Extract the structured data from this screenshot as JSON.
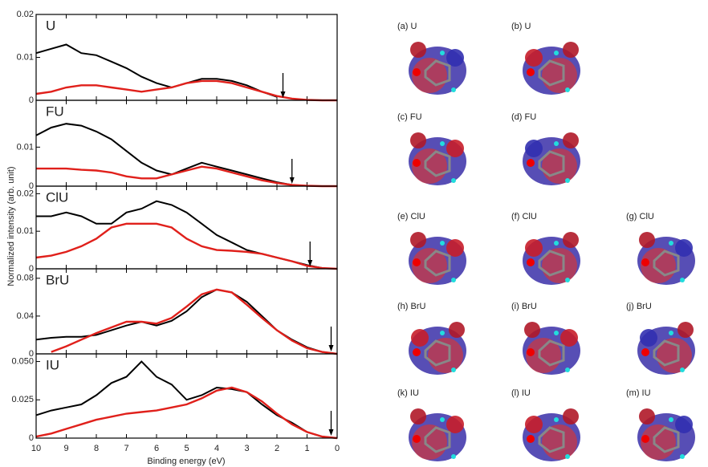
{
  "axes": {
    "xlabel": "Binding energy (eV)",
    "ylabel": "Normalized intensity (arb. unit)"
  },
  "chart_data": [
    {
      "type": "line",
      "label": "U",
      "xlim": [
        10,
        0
      ],
      "ylim": [
        0,
        0.02
      ],
      "yticks": [
        0,
        0.01,
        0.02
      ],
      "xticks": [
        10,
        9,
        8,
        7,
        6,
        5,
        4,
        3,
        2,
        1,
        0
      ],
      "arrow_x": 1.8,
      "x": [
        10,
        9.5,
        9,
        8.5,
        8,
        7.5,
        7,
        6.5,
        6,
        5.5,
        5,
        4.5,
        4,
        3.5,
        3,
        2.5,
        2,
        1.5,
        1,
        0.5,
        0
      ],
      "series": [
        {
          "color": "#000000",
          "values": [
            0.011,
            0.012,
            0.013,
            0.011,
            0.0105,
            0.009,
            0.0075,
            0.0055,
            0.004,
            0.003,
            0.004,
            0.005,
            0.005,
            0.0045,
            0.0035,
            0.002,
            0.0008,
            null,
            null,
            null,
            null
          ]
        },
        {
          "color": "#e0201b",
          "values": [
            0.0015,
            0.002,
            0.003,
            0.0035,
            0.0035,
            0.003,
            0.0025,
            0.002,
            0.0025,
            0.003,
            0.004,
            0.0045,
            0.0045,
            0.004,
            0.003,
            0.002,
            0.001,
            0.0004,
            0.0001,
            0,
            0
          ]
        }
      ]
    },
    {
      "type": "line",
      "label": "FU",
      "xlim": [
        10,
        0
      ],
      "ylim": [
        0,
        0.022
      ],
      "yticks": [
        0,
        0.01
      ],
      "xticks": [
        10,
        9,
        8,
        7,
        6,
        5,
        4,
        3,
        2,
        1,
        0
      ],
      "arrow_x": 1.5,
      "x": [
        10,
        9.5,
        9,
        8.5,
        8,
        7.5,
        7,
        6.5,
        6,
        5.5,
        5,
        4.5,
        4,
        3.5,
        3,
        2.5,
        2,
        1.5,
        1,
        0.5,
        0
      ],
      "series": [
        {
          "color": "#000000",
          "values": [
            0.013,
            0.015,
            0.016,
            0.0155,
            0.014,
            0.012,
            0.009,
            0.006,
            0.004,
            0.003,
            0.0045,
            0.006,
            0.005,
            0.004,
            0.003,
            0.002,
            0.001,
            0.0003,
            null,
            null,
            null
          ]
        },
        {
          "color": "#e0201b",
          "values": [
            0.0045,
            0.0045,
            0.0045,
            0.0042,
            0.004,
            0.0035,
            0.0025,
            0.002,
            0.002,
            0.003,
            0.004,
            0.005,
            0.0045,
            0.0035,
            0.0025,
            0.0015,
            0.0008,
            0.0003,
            0.0001,
            0,
            0
          ]
        }
      ]
    },
    {
      "type": "line",
      "label": "ClU",
      "xlim": [
        10,
        0
      ],
      "ylim": [
        0,
        0.022
      ],
      "yticks": [
        0,
        0.01,
        0.02
      ],
      "xticks": [
        10,
        9,
        8,
        7,
        6,
        5,
        4,
        3,
        2,
        1,
        0
      ],
      "arrow_x": 0.9,
      "x": [
        10,
        9.5,
        9,
        8.5,
        8,
        7.5,
        7,
        6.5,
        6,
        5.5,
        5,
        4.5,
        4,
        3.5,
        3,
        2.5,
        2,
        1.5,
        1,
        0.5,
        0
      ],
      "series": [
        {
          "color": "#000000",
          "values": [
            0.014,
            0.014,
            0.015,
            0.014,
            0.012,
            0.012,
            0.015,
            0.016,
            0.018,
            0.017,
            0.015,
            0.012,
            0.009,
            0.007,
            0.005,
            0.004,
            0.003,
            0.002,
            0.001,
            0.0002,
            null
          ]
        },
        {
          "color": "#e0201b",
          "values": [
            0.003,
            0.0035,
            0.0045,
            0.006,
            0.008,
            0.011,
            0.012,
            0.012,
            0.012,
            0.011,
            0.008,
            0.006,
            0.005,
            0.0048,
            0.0045,
            0.004,
            0.003,
            0.002,
            0.0008,
            0.0002,
            0
          ]
        }
      ]
    },
    {
      "type": "line",
      "label": "BrU",
      "xlim": [
        10,
        0
      ],
      "ylim": [
        0,
        0.09
      ],
      "yticks": [
        0,
        0.04,
        0.08
      ],
      "xticks": [
        10,
        9,
        8,
        7,
        6,
        5,
        4,
        3,
        2,
        1,
        0
      ],
      "arrow_x": 0.2,
      "x": [
        10,
        9.5,
        9,
        8.5,
        8,
        7.5,
        7,
        6.5,
        6,
        5.5,
        5,
        4.5,
        4,
        3.5,
        3,
        2.5,
        2,
        1.5,
        1,
        0.5,
        0
      ],
      "series": [
        {
          "color": "#000000",
          "values": [
            0.015,
            0.017,
            0.018,
            0.018,
            0.02,
            0.025,
            0.03,
            0.034,
            0.03,
            0.035,
            0.045,
            0.06,
            0.068,
            0.065,
            0.055,
            0.04,
            0.025,
            0.015,
            0.007,
            0.002,
            0
          ]
        },
        {
          "color": "#e0201b",
          "values": [
            null,
            0.002,
            0.008,
            0.015,
            0.022,
            0.028,
            0.034,
            0.034,
            0.032,
            0.038,
            0.05,
            0.063,
            0.068,
            0.065,
            0.052,
            0.038,
            0.025,
            0.014,
            0.006,
            0.002,
            0
          ]
        }
      ]
    },
    {
      "type": "line",
      "label": "IU",
      "xlim": [
        10,
        0
      ],
      "ylim": [
        0,
        0.055
      ],
      "yticks": [
        0,
        {
          "value": 0.025,
          "label": "0.025"
        },
        {
          "value": 0.05,
          "label": "0.050"
        }
      ],
      "xticks": [
        10,
        9,
        8,
        7,
        6,
        5,
        4,
        3,
        2,
        1,
        0
      ],
      "arrow_x": 0.2,
      "x": [
        10,
        9.5,
        9,
        8.5,
        8,
        7.5,
        7,
        6.5,
        6,
        5.5,
        5,
        4.5,
        4,
        3.5,
        3,
        2.5,
        2,
        1.5,
        1,
        0.5,
        0
      ],
      "series": [
        {
          "color": "#000000",
          "values": [
            0.015,
            0.018,
            0.02,
            0.022,
            0.028,
            0.036,
            0.04,
            0.05,
            0.04,
            0.035,
            0.025,
            0.028,
            0.033,
            0.032,
            0.03,
            0.022,
            0.015,
            0.01,
            0.004,
            0.001,
            0
          ]
        },
        {
          "color": "#e0201b",
          "values": [
            0.001,
            0.003,
            0.006,
            0.009,
            0.012,
            0.014,
            0.016,
            0.017,
            0.018,
            0.02,
            0.022,
            0.026,
            0.031,
            0.033,
            0.03,
            0.024,
            0.016,
            0.009,
            0.004,
            0.001,
            0
          ]
        }
      ]
    }
  ],
  "orbitals": [
    {
      "row": 0,
      "col": 0,
      "label": "(a) U"
    },
    {
      "row": 0,
      "col": 1,
      "label": "(b) U"
    },
    {
      "row": 1,
      "col": 0,
      "label": "(c) FU"
    },
    {
      "row": 1,
      "col": 1,
      "label": "(d) FU"
    },
    {
      "row": 2,
      "col": 0,
      "label": "(e) ClU"
    },
    {
      "row": 2,
      "col": 1,
      "label": "(f) ClU"
    },
    {
      "row": 2,
      "col": 2,
      "label": "(g) ClU"
    },
    {
      "row": 3,
      "col": 0,
      "label": "(h) BrU"
    },
    {
      "row": 3,
      "col": 1,
      "label": "(i) BrU"
    },
    {
      "row": 3,
      "col": 2,
      "label": "(j) BrU"
    },
    {
      "row": 4,
      "col": 0,
      "label": "(k) IU"
    },
    {
      "row": 4,
      "col": 1,
      "label": "(l) IU"
    },
    {
      "row": 4,
      "col": 2,
      "label": "(m) IU"
    }
  ]
}
